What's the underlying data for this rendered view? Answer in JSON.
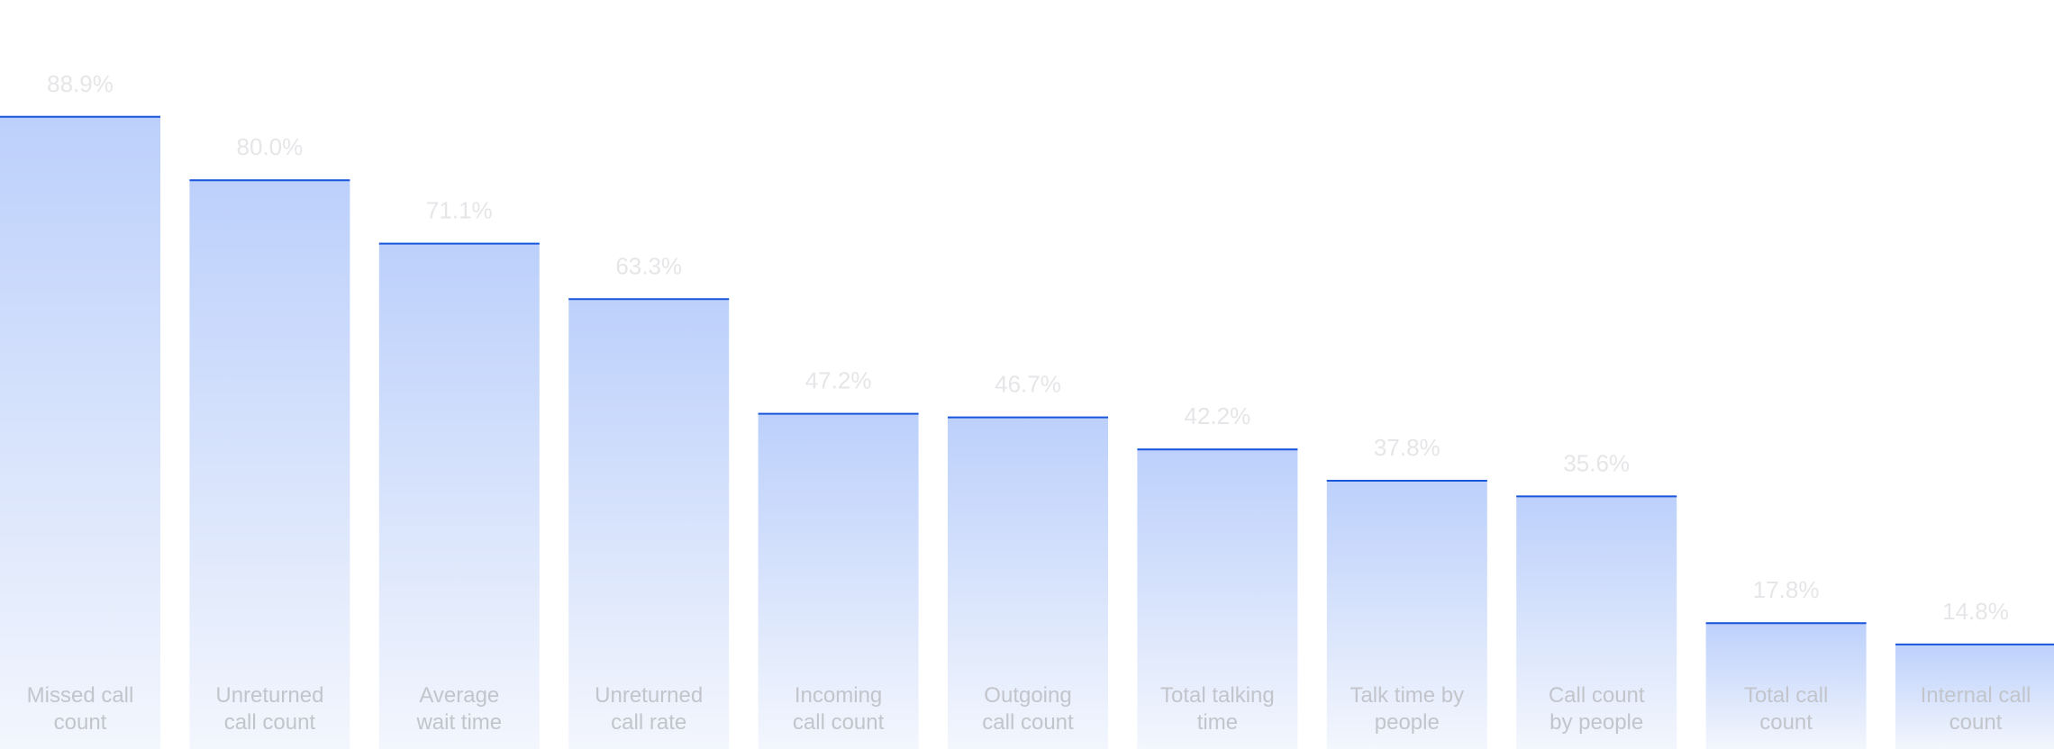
{
  "chart_data": {
    "type": "bar",
    "categories": [
      "Missed call count",
      "Unreturned call count",
      "Average wait time",
      "Unreturned call rate",
      "Incoming call count",
      "Outgoing call count",
      "Total talking time",
      "Talk time by people",
      "Call count by people",
      "Total call count",
      "Internal call count"
    ],
    "category_lines": [
      [
        "Missed call",
        "count"
      ],
      [
        "Unreturned",
        "call count"
      ],
      [
        "Average",
        "wait time"
      ],
      [
        "Unreturned",
        "call rate"
      ],
      [
        "Incoming",
        "call count"
      ],
      [
        "Outgoing",
        "call count"
      ],
      [
        "Total talking",
        "time"
      ],
      [
        "Talk time by",
        "people"
      ],
      [
        "Call count",
        "by people"
      ],
      [
        "Total call",
        "count"
      ],
      [
        "Internal call",
        "count"
      ]
    ],
    "values": [
      88.9,
      80.0,
      71.1,
      63.3,
      47.2,
      46.7,
      42.2,
      37.8,
      35.6,
      17.8,
      14.8
    ],
    "value_labels": [
      "88.9%",
      "80.0%",
      "71.1%",
      "63.3%",
      "47.2%",
      "46.7%",
      "42.2%",
      "37.8%",
      "35.6%",
      "17.8%",
      "14.8%"
    ],
    "title": "",
    "xlabel": "",
    "ylabel": "",
    "ylim": [
      0,
      100
    ],
    "grid": false,
    "legend": "none",
    "colors": {
      "bar_top": "#bcd0fb",
      "bar_bottom": "#f3f6fd",
      "bar_edge": "#1a56db",
      "value_label": "#e6e6e9",
      "category_label": "#c2c5cb"
    }
  }
}
